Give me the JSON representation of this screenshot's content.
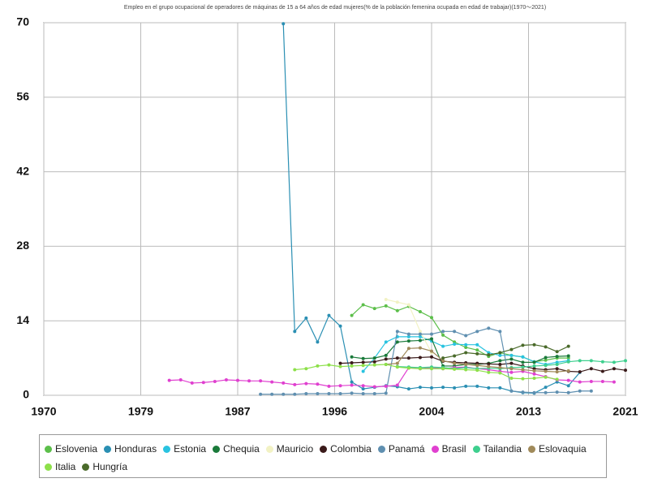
{
  "chart_data": {
    "type": "line",
    "title": "Empleo en el grupo ocupacional de operadores de máquinas de 15 a 64 años de edad mujeres(% de la población femenina ocupada en edad de trabajar)(1970～2021)",
    "x": [
      1981,
      1982,
      1983,
      1984,
      1985,
      1986,
      1987,
      1988,
      1989,
      1990,
      1991,
      1992,
      1993,
      1994,
      1995,
      1996,
      1997,
      1998,
      1999,
      2000,
      2001,
      2002,
      2003,
      2004,
      2005,
      2006,
      2007,
      2008,
      2009,
      2010,
      2011,
      2012,
      2013,
      2014,
      2015,
      2016,
      2017,
      2018,
      2019,
      2020,
      2021
    ],
    "xlim": [
      1970,
      2021
    ],
    "xticks": [
      1970,
      {
        "value": 1978.5,
        "label": "1979"
      },
      1987,
      {
        "value": 1995.5,
        "label": "1996"
      },
      2004,
      {
        "value": 2012.5,
        "label": "2013"
      },
      2021
    ],
    "ylim": [
      0,
      70
    ],
    "yticks": [
      0,
      14,
      28,
      42,
      56,
      70
    ],
    "grid": true,
    "series": [
      {
        "name": "Eslovenia",
        "color": "#5cbf4a",
        "values": [
          null,
          null,
          null,
          null,
          null,
          null,
          null,
          null,
          null,
          null,
          null,
          null,
          null,
          null,
          null,
          null,
          15,
          17,
          16.3,
          16.8,
          15.9,
          16.7,
          15.7,
          14.6,
          11.3,
          10,
          9,
          8.5,
          7.3,
          8,
          7.5,
          7.2,
          6.3,
          6.6,
          7,
          7,
          null,
          null,
          null,
          null,
          null
        ]
      },
      {
        "name": "Honduras",
        "color": "#2a8fb3",
        "values": [
          null,
          null,
          null,
          null,
          null,
          null,
          null,
          null,
          null,
          null,
          69.8,
          12,
          14.5,
          10,
          15,
          13,
          2.5,
          1.2,
          1.5,
          1.8,
          1.6,
          1.2,
          1.5,
          1.4,
          1.5,
          1.4,
          1.7,
          1.7,
          1.4,
          1.4,
          0.8,
          0.5,
          0.4,
          1.5,
          2.5,
          1.8,
          4.3,
          null,
          null,
          null,
          null
        ]
      },
      {
        "name": "Estonia",
        "color": "#29c3e0",
        "values": [
          null,
          null,
          null,
          null,
          null,
          null,
          null,
          null,
          null,
          null,
          null,
          null,
          null,
          null,
          null,
          null,
          null,
          4.5,
          7,
          10,
          11,
          11,
          11,
          10.2,
          9.2,
          9.6,
          9.5,
          9.5,
          8,
          7.5,
          7.5,
          7.2,
          6.3,
          5.8,
          6.2,
          6.5,
          null,
          null,
          null,
          null,
          null
        ]
      },
      {
        "name": "Chequia",
        "color": "#1a7a3a",
        "values": [
          null,
          null,
          null,
          null,
          null,
          null,
          null,
          null,
          null,
          null,
          null,
          null,
          null,
          null,
          null,
          null,
          7.2,
          6.9,
          7,
          7.5,
          10,
          10.2,
          10.3,
          10.6,
          5.5,
          5.5,
          5.8,
          5.8,
          6,
          6.5,
          6.8,
          6.2,
          6.2,
          7.1,
          7.3,
          7.4,
          null,
          null,
          null,
          null,
          null
        ]
      },
      {
        "name": "Mauricio",
        "color": "#f2f2c4",
        "values": [
          null,
          null,
          null,
          null,
          null,
          null,
          null,
          null,
          null,
          null,
          null,
          null,
          null,
          null,
          null,
          null,
          null,
          null,
          null,
          18,
          17.5,
          17,
          12,
          8,
          null,
          null,
          null,
          null,
          null,
          null,
          null,
          null,
          null,
          null,
          null,
          null,
          null,
          null,
          null,
          null,
          null
        ]
      },
      {
        "name": "Colombia",
        "color": "#3a1a1a",
        "values": [
          null,
          null,
          null,
          null,
          null,
          null,
          null,
          null,
          null,
          null,
          null,
          null,
          null,
          null,
          null,
          6,
          6.1,
          6.2,
          6.3,
          6.8,
          7,
          7,
          7.1,
          7.2,
          6.4,
          6.2,
          6.1,
          6,
          5.9,
          5.8,
          6,
          5.5,
          5,
          4.8,
          5,
          4.5,
          4.4,
          5,
          4.5,
          5,
          4.7
        ]
      },
      {
        "name": "Panamá",
        "color": "#5f8fb0",
        "values": [
          null,
          null,
          null,
          null,
          null,
          null,
          null,
          null,
          0.2,
          0.2,
          0.2,
          0.2,
          0.3,
          0.3,
          0.3,
          0.3,
          0.4,
          0.3,
          0.3,
          0.4,
          12,
          11.5,
          11.5,
          11.5,
          12,
          12,
          11.2,
          12,
          12.6,
          12,
          0.8,
          0.6,
          0.5,
          0.5,
          0.6,
          0.5,
          0.8,
          0.8,
          null,
          null,
          null
        ]
      },
      {
        "name": "Brasil",
        "color": "#e040d0",
        "values": [
          2.8,
          2.9,
          2.3,
          2.4,
          2.6,
          2.9,
          2.8,
          2.7,
          2.7,
          2.5,
          2.3,
          2,
          2.2,
          2.1,
          1.7,
          1.8,
          1.9,
          1.8,
          1.6,
          1.7,
          1.9,
          5.2,
          5,
          5.2,
          5,
          5.2,
          5.3,
          5,
          4.8,
          4.5,
          4.3,
          4.5,
          4,
          3.5,
          2.9,
          2.8,
          2.5,
          2.6,
          2.6,
          2.5,
          null
        ]
      },
      {
        "name": "Tailandia",
        "color": "#3ecf8e",
        "values": [
          null,
          null,
          null,
          null,
          null,
          null,
          null,
          null,
          null,
          null,
          null,
          null,
          null,
          null,
          null,
          null,
          null,
          null,
          null,
          null,
          5.4,
          5.3,
          5.2,
          5.3,
          5.2,
          5,
          5.2,
          5,
          5.1,
          5,
          5.2,
          5.3,
          5.5,
          5.6,
          5.8,
          6.3,
          6.5,
          6.5,
          6.3,
          6.2,
          6.5
        ]
      },
      {
        "name": "Eslovaquia",
        "color": "#a08a5a",
        "values": [
          null,
          null,
          null,
          null,
          null,
          null,
          null,
          null,
          null,
          null,
          null,
          null,
          null,
          null,
          null,
          null,
          null,
          null,
          null,
          5.8,
          6,
          8.8,
          8.9,
          8.3,
          6.5,
          6,
          5.8,
          5.6,
          5.4,
          5.2,
          5,
          4.8,
          4.6,
          4.5,
          4.4,
          4.6,
          null,
          null,
          null,
          null,
          null
        ]
      },
      {
        "name": "Italia",
        "color": "#8de04a",
        "values": [
          null,
          null,
          null,
          null,
          null,
          null,
          null,
          null,
          null,
          null,
          null,
          4.8,
          5,
          5.5,
          5.7,
          5.4,
          5.5,
          5.6,
          5.7,
          5.8,
          5.3,
          5.1,
          5,
          5,
          5,
          4.9,
          4.8,
          4.7,
          4.3,
          4.2,
          3.2,
          3.1,
          3.2,
          3.4,
          3,
          null,
          null,
          null,
          null,
          null,
          null
        ]
      },
      {
        "name": "Hungría",
        "color": "#4a6a2a",
        "values": [
          null,
          null,
          null,
          null,
          null,
          null,
          null,
          null,
          null,
          null,
          null,
          null,
          null,
          null,
          null,
          null,
          null,
          null,
          null,
          null,
          null,
          null,
          null,
          null,
          7,
          7.4,
          8,
          7.8,
          7.6,
          8,
          8.6,
          9.4,
          9.5,
          9.1,
          8.2,
          9.2,
          null,
          null,
          null,
          null,
          null
        ]
      }
    ]
  }
}
